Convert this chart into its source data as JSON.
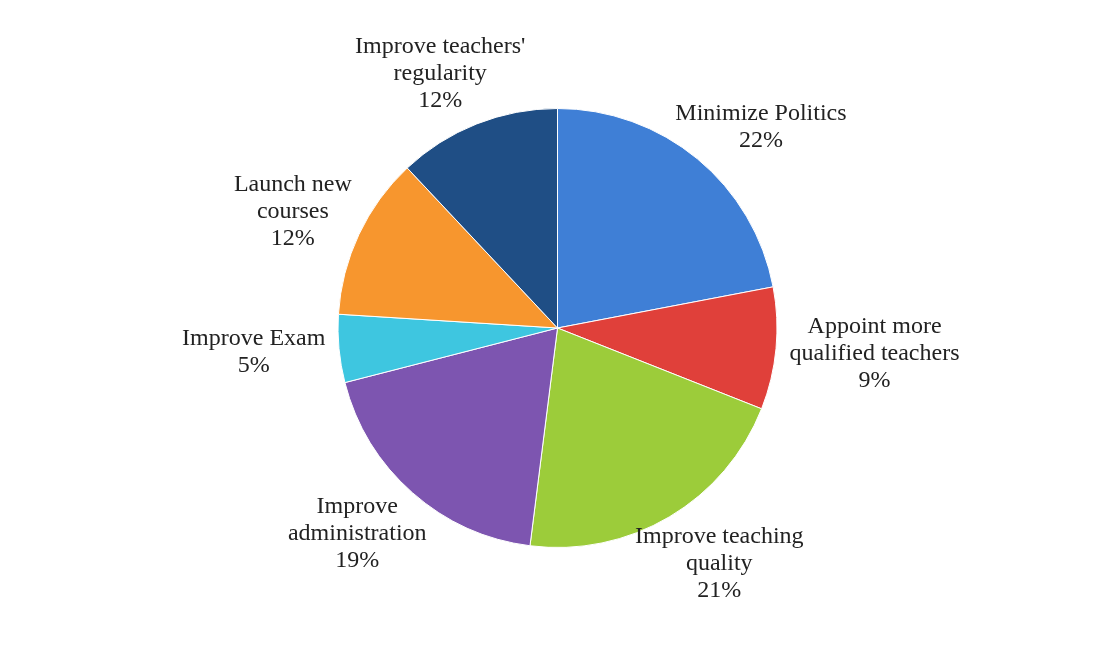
{
  "chart_data": {
    "type": "pie",
    "categories": [
      "Minimize Politics",
      "Appoint more qualified teachers",
      "Improve teaching quality",
      "Improve administration",
      "Improve Exam",
      "Launch new courses",
      "Improve teachers' regularity"
    ],
    "values": [
      22,
      9,
      21,
      19,
      5,
      12,
      12
    ],
    "value_labels": [
      "22%",
      "9%",
      "21%",
      "19%",
      "5%",
      "12%",
      "12%"
    ],
    "colors": [
      "#3f7fd6",
      "#e0403a",
      "#9ccc3a",
      "#7d55b0",
      "#3ec6e0",
      "#f7962e",
      "#1f4e85"
    ],
    "legend": false
  }
}
